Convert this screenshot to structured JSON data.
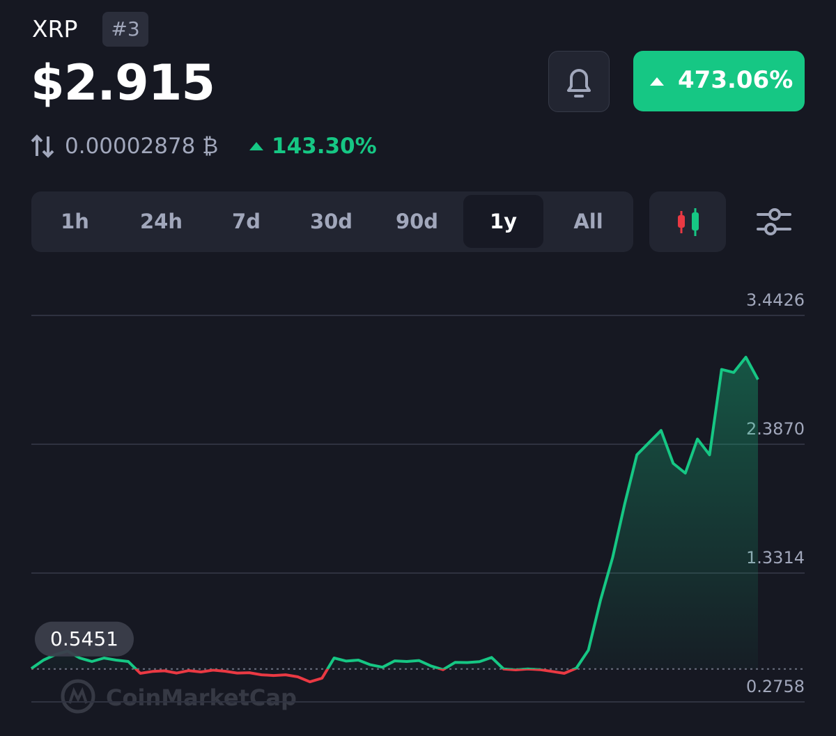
{
  "header": {
    "name": "XRP",
    "rank": "#3",
    "price": "$2.915",
    "change": "473.06%",
    "btc_price": "0.00002878 ₿",
    "btc_change": "143.30%"
  },
  "tabs": [
    "1h",
    "24h",
    "7d",
    "30d",
    "90d",
    "1y",
    "All"
  ],
  "watermark": "CoinMarketCap",
  "chart_data": {
    "type": "line",
    "values": [
      0.549,
      0.618,
      0.664,
      0.692,
      0.635,
      0.607,
      0.635,
      0.618,
      0.607,
      0.51,
      0.525,
      0.53,
      0.512,
      0.532,
      0.521,
      0.536,
      0.527,
      0.512,
      0.515,
      0.498,
      0.492,
      0.498,
      0.481,
      0.44,
      0.47,
      0.635,
      0.61,
      0.618,
      0.58,
      0.56,
      0.612,
      0.607,
      0.615,
      0.57,
      0.54,
      0.6,
      0.598,
      0.605,
      0.64,
      0.545,
      0.538,
      0.545,
      0.54,
      0.525,
      0.51,
      0.552,
      0.7,
      1.11,
      1.46,
      1.9,
      2.3,
      2.4,
      2.5,
      2.23,
      2.15,
      2.43,
      2.3,
      3.0,
      2.975,
      3.1,
      2.917
    ],
    "baseline": 0.5451,
    "up_color": "#16c784",
    "down_color": "#ea3943",
    "ylim": [
      0.2758,
      3.4426
    ],
    "yticks": [
      0.2758,
      1.3314,
      {
        "value": 2.387,
        "label": "2.3870"
      },
      3.4426
    ],
    "grid": true
  }
}
